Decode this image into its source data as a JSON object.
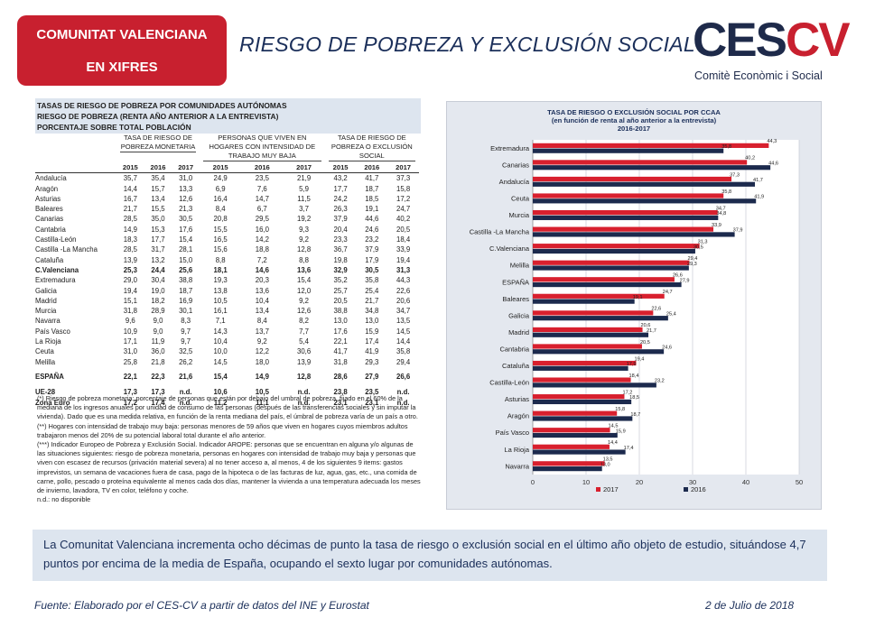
{
  "header": {
    "badge_line1": "COMUNITAT VALENCIANA",
    "badge_line2": "EN XIFRES",
    "title": "RIESGO DE POBREZA Y EXCLUSIÓN SOCIAL",
    "logo_left": "CES",
    "logo_right": "CV",
    "logo_sub": "Comitè Econòmic i Social"
  },
  "table": {
    "title1": "TASAS DE RIESGO DE POBREZA POR COMUNIDADES AUTÓNOMAS",
    "title2": "RIESGO DE POBREZA (RENTA AÑO ANTERIOR A LA ENTREVISTA)",
    "title3": "PORCENTAJE SOBRE TOTAL POBLACIÓN",
    "group1": "TASA DE RIESGO DE POBREZA MONETARIA",
    "group2": "PERSONAS QUE VIVEN EN HOGARES CON INTENSIDAD DE TRABAJO MUY BAJA",
    "group3": "TASA DE RIESGO DE POBREZA O EXCLUSIÓN SOCIAL",
    "years": [
      "2015",
      "2016",
      "2017"
    ],
    "rows": [
      {
        "name": "Andalucía",
        "v": [
          "35,7",
          "35,4",
          "31,0",
          "24,9",
          "23,5",
          "21,9",
          "43,2",
          "41,7",
          "37,3"
        ]
      },
      {
        "name": "Aragón",
        "v": [
          "14,4",
          "15,7",
          "13,3",
          "6,9",
          "7,6",
          "5,9",
          "17,7",
          "18,7",
          "15,8"
        ]
      },
      {
        "name": "Asturias",
        "v": [
          "16,7",
          "13,4",
          "12,6",
          "16,4",
          "14,7",
          "11,5",
          "24,2",
          "18,5",
          "17,2"
        ]
      },
      {
        "name": "Baleares",
        "v": [
          "21,7",
          "15,5",
          "21,3",
          "8,4",
          "6,7",
          "3,7",
          "26,3",
          "19,1",
          "24,7"
        ]
      },
      {
        "name": "Canarias",
        "v": [
          "28,5",
          "35,0",
          "30,5",
          "20,8",
          "29,5",
          "19,2",
          "37,9",
          "44,6",
          "40,2"
        ]
      },
      {
        "name": "Cantabria",
        "v": [
          "14,9",
          "15,3",
          "17,6",
          "15,5",
          "16,0",
          "9,3",
          "20,4",
          "24,6",
          "20,5"
        ]
      },
      {
        "name": "Castilla-León",
        "v": [
          "18,3",
          "17,7",
          "15,4",
          "16,5",
          "14,2",
          "9,2",
          "23,3",
          "23,2",
          "18,4"
        ]
      },
      {
        "name": "Castilla -La Mancha",
        "v": [
          "28,5",
          "31,7",
          "28,1",
          "15,6",
          "18,8",
          "12,8",
          "36,7",
          "37,9",
          "33,9"
        ]
      },
      {
        "name": "Cataluña",
        "v": [
          "13,9",
          "13,2",
          "15,0",
          "8,8",
          "7,2",
          "8,8",
          "19,8",
          "17,9",
          "19,4"
        ]
      },
      {
        "name": "C.Valenciana",
        "v": [
          "25,3",
          "24,4",
          "25,6",
          "18,1",
          "14,6",
          "13,6",
          "32,9",
          "30,5",
          "31,3"
        ],
        "bold": true
      },
      {
        "name": "Extremadura",
        "v": [
          "29,0",
          "30,4",
          "38,8",
          "19,3",
          "20,3",
          "15,4",
          "35,2",
          "35,8",
          "44,3"
        ]
      },
      {
        "name": "Galicia",
        "v": [
          "19,4",
          "19,0",
          "18,7",
          "13,8",
          "13,6",
          "12,0",
          "25,7",
          "25,4",
          "22,6"
        ]
      },
      {
        "name": "Madrid",
        "v": [
          "15,1",
          "18,2",
          "16,9",
          "10,5",
          "10,4",
          "9,2",
          "20,5",
          "21,7",
          "20,6"
        ]
      },
      {
        "name": "Murcia",
        "v": [
          "31,8",
          "28,9",
          "30,1",
          "16,1",
          "13,4",
          "12,6",
          "38,8",
          "34,8",
          "34,7"
        ]
      },
      {
        "name": "Navarra",
        "v": [
          "9,6",
          "9,0",
          "8,3",
          "7,1",
          "8,4",
          "8,2",
          "13,0",
          "13,0",
          "13,5"
        ]
      },
      {
        "name": "País Vasco",
        "v": [
          "10,9",
          "9,0",
          "9,7",
          "14,3",
          "13,7",
          "7,7",
          "17,6",
          "15,9",
          "14,5"
        ]
      },
      {
        "name": "La Rioja",
        "v": [
          "17,1",
          "11,9",
          "9,7",
          "10,4",
          "9,2",
          "5,4",
          "22,1",
          "17,4",
          "14,4"
        ]
      },
      {
        "name": "Ceuta",
        "v": [
          "31,0",
          "36,0",
          "32,5",
          "10,0",
          "12,2",
          "30,6",
          "41,7",
          "41,9",
          "35,8"
        ]
      },
      {
        "name": "Melilla",
        "v": [
          "25,8",
          "21,8",
          "26,2",
          "14,5",
          "18,0",
          "13,9",
          "31,8",
          "29,3",
          "29,4"
        ]
      },
      {
        "name": "ESPAÑA",
        "v": [
          "22,1",
          "22,3",
          "21,6",
          "15,4",
          "14,9",
          "12,8",
          "28,6",
          "27,9",
          "26,6"
        ],
        "bold": true,
        "space": true
      },
      {
        "name": "UE-28",
        "v": [
          "17,3",
          "17,3",
          "n.d.",
          "10,6",
          "10,5",
          "n.d.",
          "23,8",
          "23,5",
          "n.d."
        ],
        "bold": true,
        "space": true
      },
      {
        "name": "Zona Euro",
        "v": [
          "17,2",
          "17,4",
          "n.d.",
          "11,2",
          "11,1",
          "n.d.",
          "23,1",
          "23,1",
          "n.d."
        ],
        "bold": true
      }
    ]
  },
  "notes": [
    "(*) Riesgo de pobreza monetaria: porcentaje de personas que están por debajo del umbral de pobreza, fijado en el 60% de la mediana de los ingresos anuales por unidad de consumo de las personas (después de las transferencias sociales y sin imputar la vivienda). Dado que es una medida relativa, en función de la renta mediana del país, el úmbral de pobreza varía de un país a otro.",
    "(**) Hogares con intensidad de trabajo muy baja: personas menores de 59 años que viven en hogares cuyos miembros adultos trabajaron menos del 20% de su potencial laboral total durante el año anterior.",
    "(***) Indicador Europeo de Pobreza y Exclusión Social. Indicador AROPE: personas que se encuentran en alguna y/o algunas de las situaciones siguientes: riesgo de pobreza monetaria, personas en hogares con intensidad de trabajo muy baja y personas que viven con escasez de recursos (privación material severa) al no tener acceso a, al menos, 4 de los siguientes 9 items: gastos imprevistos, un semana de vacaciones fuera de casa, pago de la hipoteca o de las facturas de luz, agua, gas, etc., una comida de carne, pollo, pescado o proteína equivalente al menos cada dos días, mantener la vivienda a una temperatura adecuada los meses de invierno, lavadora, TV en color, teléfono y coche.",
    "n.d.: no disponible"
  ],
  "chart_data": {
    "type": "bar",
    "orientation": "horizontal",
    "title": "TASA DE RIESGO O EXCLUSIÓN SOCIAL POR CCAA",
    "subtitle": "(en función de renta al año anterior a la entrevista)",
    "period": "2016-2017",
    "categories": [
      "Extremadura",
      "Canarias",
      "Andalucía",
      "Ceuta",
      "Murcia",
      "Castilla -La Mancha",
      "C.Valenciana",
      "Melilla",
      "ESPAÑA",
      "Baleares",
      "Galicia",
      "Madrid",
      "Cantabria",
      "Cataluña",
      "Castilla-León",
      "Asturias",
      "Aragón",
      "País Vasco",
      "La Rioja",
      "Navarra"
    ],
    "series": [
      {
        "name": "2017",
        "color": "#d8202e",
        "values": [
          44.3,
          40.2,
          37.3,
          35.8,
          34.7,
          33.9,
          31.3,
          29.4,
          26.6,
          24.7,
          22.6,
          20.6,
          20.5,
          19.4,
          18.4,
          17.2,
          15.8,
          14.5,
          14.4,
          13.5
        ],
        "labels": [
          "44,3",
          "40,2",
          "37,3",
          "35,8",
          "34,7",
          "33,9",
          "31,3",
          "29,4",
          "26,6",
          "24,7",
          "22,6",
          "20,6",
          "20,5",
          "19,4",
          "18,4",
          "17,2",
          "15,8",
          "14,5",
          "14,4",
          "13,5"
        ]
      },
      {
        "name": "2016",
        "color": "#1c2a4d",
        "values": [
          35.8,
          44.6,
          41.7,
          41.9,
          34.8,
          37.9,
          30.5,
          29.3,
          27.9,
          19.1,
          25.4,
          21.7,
          24.6,
          17.9,
          23.2,
          18.5,
          18.7,
          15.9,
          17.4,
          13.0
        ],
        "labels": [
          "35,8",
          "44,6",
          "41,7",
          "41,9",
          "34,8",
          "37,9",
          "30,5",
          "29,3",
          "27,9",
          "19,1",
          "25,4",
          "21,7",
          "24,6",
          "17,9",
          "23,2",
          "18,5",
          "18,7",
          "15,9",
          "17,4",
          "13,0"
        ]
      }
    ],
    "xlim": [
      0,
      50
    ],
    "xticks": [
      "0",
      "10",
      "20",
      "30",
      "40",
      "50"
    ],
    "grid": true,
    "legend": "bottom"
  },
  "summary": "La Comunitat Valenciana incrementa ocho décimas de punto la tasa de riesgo o exclusión social en el último año objeto de estudio, situándose 4,7 puntos por encima de la media de España, ocupando el sexto lugar por comunidades autónomas.",
  "footer": {
    "source": "Fuente: Elaborado por el CES-CV a partir de datos del INE y Eurostat",
    "date": "2 de Julio de 2018"
  }
}
